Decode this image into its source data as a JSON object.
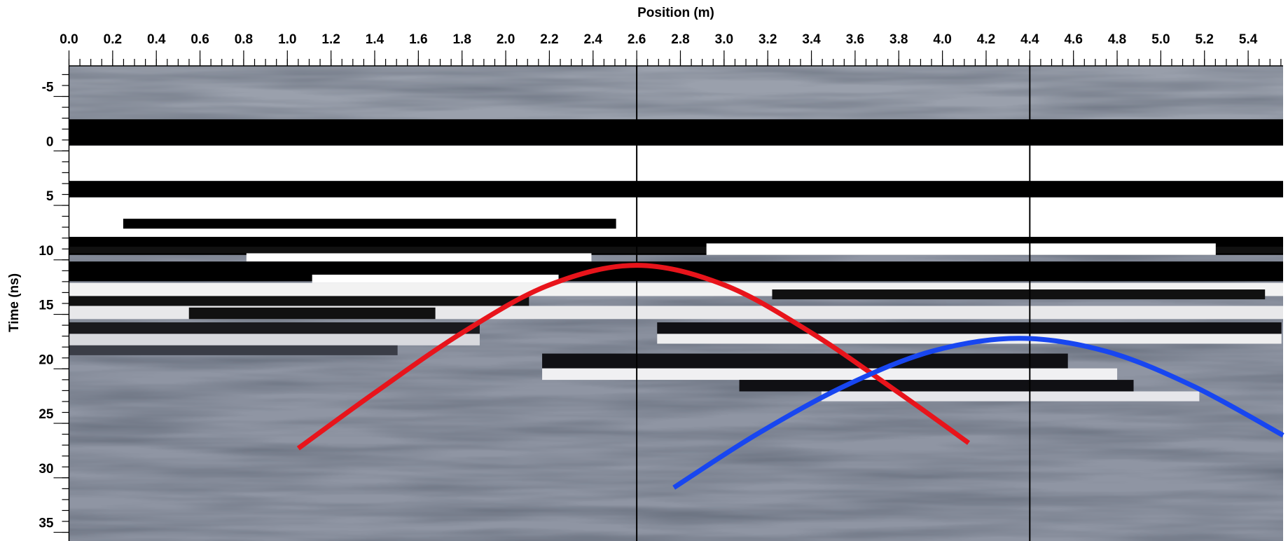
{
  "chart_data": {
    "type": "radargram",
    "xlabel": "Position (m)",
    "ylabel": "Time (ns)",
    "xlim": [
      0,
      5.56
    ],
    "ylim": [
      -7.8,
      35.8
    ],
    "y_inverted": true,
    "x_axis_position": "top",
    "xticks": [
      {
        "value": 0,
        "label": "0.0"
      },
      0.2,
      0.4,
      0.6,
      0.8,
      {
        "value": 1,
        "label": "1.0"
      },
      1.2,
      1.4,
      1.6,
      1.8,
      {
        "value": 2,
        "label": "2.0"
      },
      2.2,
      2.4,
      2.6,
      2.8,
      {
        "value": 3,
        "label": "3.0"
      },
      3.2,
      3.4,
      3.6,
      3.8,
      {
        "value": 4,
        "label": "4.0"
      },
      4.2,
      4.4,
      4.6,
      4.8,
      {
        "value": 5,
        "label": "5.0"
      },
      5.2,
      5.4
    ],
    "yticks": [
      -5,
      0,
      5,
      10,
      15,
      20,
      25,
      30,
      35
    ],
    "markers": {
      "x": [
        2.6,
        4.4
      ],
      "color": "#000000"
    },
    "series": [
      {
        "color": "#e8141b",
        "x": [
          1.05,
          1.4,
          1.8,
          2.2,
          2.6,
          3.0,
          3.4,
          3.8,
          4.12
        ],
        "values": [
          27.3,
          22.2,
          16.7,
          12.3,
          10.5,
          12.3,
          16.7,
          22.2,
          26.8
        ]
      },
      {
        "color": "#1846f0",
        "x": [
          2.77,
          3.15,
          3.55,
          3.95,
          4.35,
          4.75,
          5.15,
          5.56
        ],
        "values": [
          30.9,
          26.0,
          21.6,
          18.4,
          17.2,
          18.4,
          21.6,
          26.1
        ]
      }
    ]
  }
}
